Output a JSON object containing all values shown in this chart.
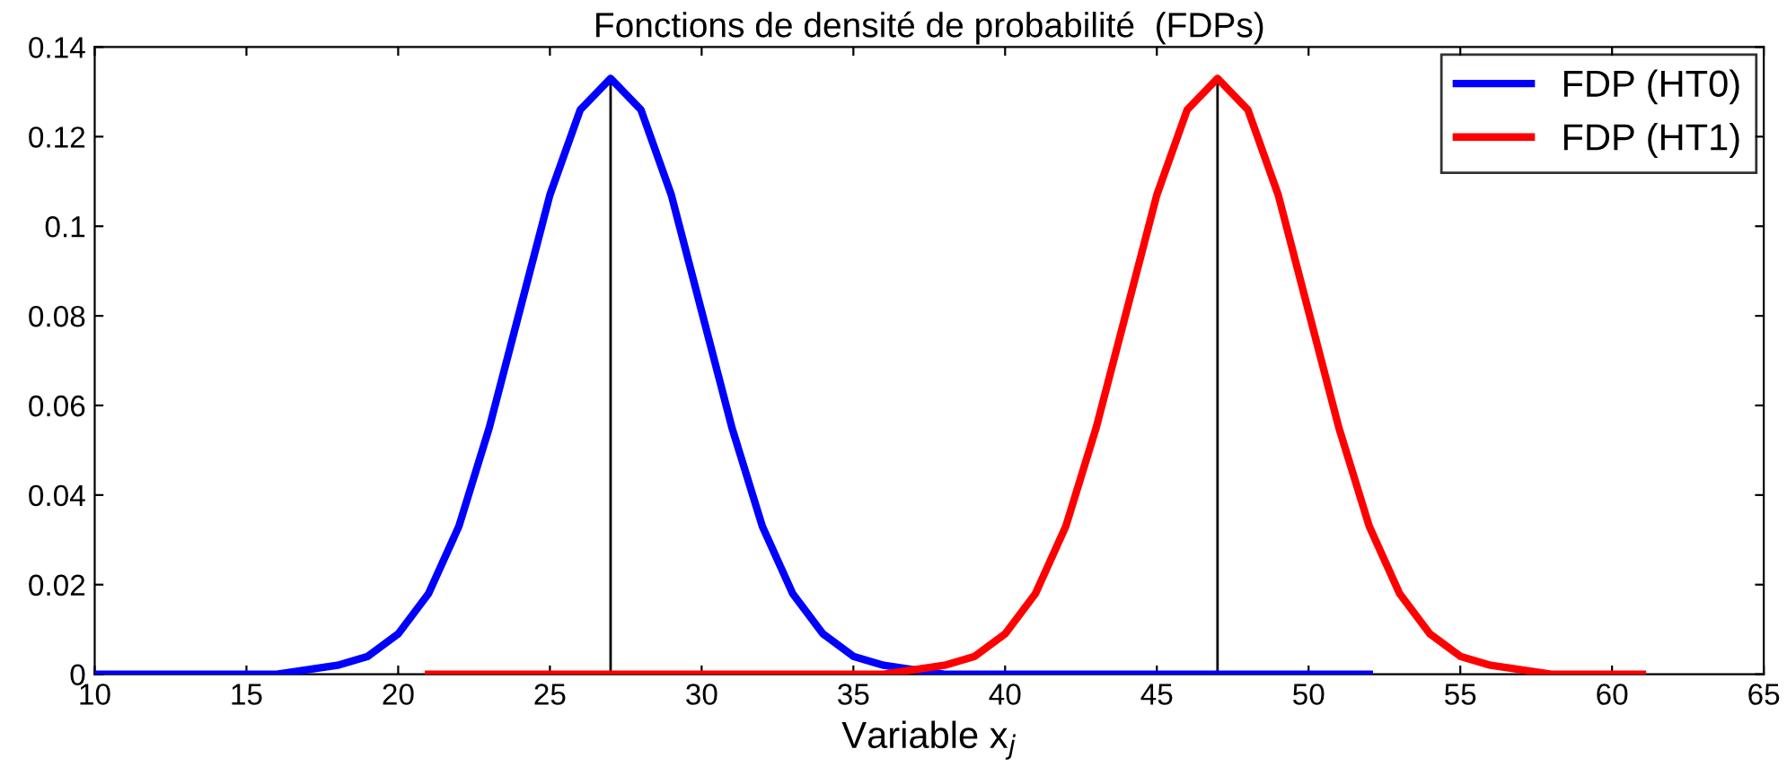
{
  "chart_data": {
    "type": "line",
    "title": "Fonctions de densité de probabilité  (FDPs)",
    "xlabel": "Variable x$_{j}$",
    "xlim": [
      10,
      65
    ],
    "xticks": [
      10,
      15,
      20,
      25,
      30,
      35,
      40,
      45,
      50,
      55,
      60,
      65
    ],
    "ylim": [
      0,
      0.14
    ],
    "yticks": [
      0,
      0.02,
      0.04,
      0.06,
      0.08,
      0.1,
      0.12,
      0.14
    ],
    "grid": false,
    "legend": "top right",
    "marker": "none",
    "line_style": "solid",
    "series": [
      {
        "name": "FDP (HT0)",
        "color": "#0000ff",
        "x": [
          10,
          11,
          12,
          13,
          14,
          15,
          16,
          17,
          18,
          19,
          20,
          21,
          22,
          23,
          24,
          25,
          26,
          27,
          28,
          29,
          30,
          31,
          32,
          33,
          34,
          35,
          36,
          37,
          38,
          39,
          40,
          41,
          42,
          43,
          44,
          45,
          46,
          47,
          48,
          49,
          50,
          51,
          52
        ],
        "values": [
          0,
          0,
          0,
          0,
          0,
          0,
          0,
          0.001,
          0.002,
          0.004,
          0.009,
          0.018,
          0.033,
          0.055,
          0.081,
          0.107,
          0.126,
          0.133,
          0.126,
          0.107,
          0.081,
          0.055,
          0.033,
          0.018,
          0.009,
          0.004,
          0.002,
          0.001,
          0,
          0,
          0,
          0,
          0,
          0,
          0,
          0,
          0,
          0,
          0,
          0,
          0,
          0,
          0
        ]
      },
      {
        "name": "FDP (HT1)",
        "color": "#ff0000",
        "x": [
          21,
          22,
          23,
          24,
          25,
          26,
          27,
          28,
          29,
          30,
          31,
          32,
          33,
          34,
          35,
          36,
          37,
          38,
          39,
          40,
          41,
          42,
          43,
          44,
          45,
          46,
          47,
          48,
          49,
          50,
          51,
          52,
          53,
          54,
          55,
          56,
          57,
          58,
          59,
          60,
          61
        ],
        "values": [
          0,
          0,
          0,
          0,
          0,
          0,
          0,
          0,
          0,
          0,
          0,
          0,
          0,
          0,
          0,
          0,
          0.001,
          0.002,
          0.004,
          0.009,
          0.018,
          0.033,
          0.055,
          0.081,
          0.107,
          0.126,
          0.133,
          0.126,
          0.107,
          0.081,
          0.055,
          0.033,
          0.018,
          0.009,
          0.004,
          0.002,
          0.001,
          0,
          0,
          0,
          0
        ]
      },
      {
        "color": "#000000",
        "x": [
          27,
          27
        ],
        "values": [
          0,
          0.133
        ]
      },
      {
        "color": "#000000",
        "x": [
          47,
          47
        ],
        "values": [
          0,
          0.133
        ]
      }
    ]
  }
}
